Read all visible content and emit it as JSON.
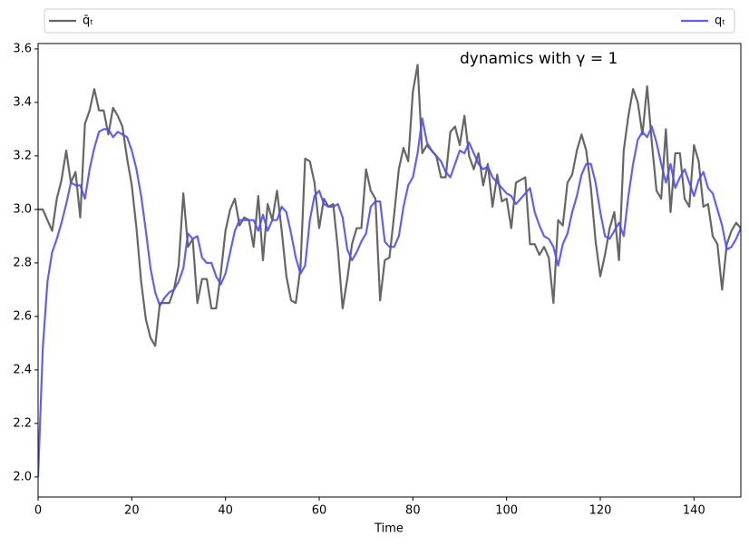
{
  "chart_data": {
    "type": "line",
    "annotation": "dynamics with γ = 1",
    "xlabel": "Time",
    "x": [
      0,
      1,
      2,
      3,
      4,
      5,
      6,
      7,
      8,
      9,
      10,
      11,
      12,
      13,
      14,
      15,
      16,
      17,
      18,
      19,
      20,
      21,
      22,
      23,
      24,
      25,
      26,
      27,
      28,
      29,
      30,
      31,
      32,
      33,
      34,
      35,
      36,
      37,
      38,
      39,
      40,
      41,
      42,
      43,
      44,
      45,
      46,
      47,
      48,
      49,
      50,
      51,
      52,
      53,
      54,
      55,
      56,
      57,
      58,
      59,
      60,
      61,
      62,
      63,
      64,
      65,
      66,
      67,
      68,
      69,
      70,
      71,
      72,
      73,
      74,
      75,
      76,
      77,
      78,
      79,
      80,
      81,
      82,
      83,
      84,
      85,
      86,
      87,
      88,
      89,
      90,
      91,
      92,
      93,
      94,
      95,
      96,
      97,
      98,
      99,
      100,
      101,
      102,
      103,
      104,
      105,
      106,
      107,
      108,
      109,
      110,
      111,
      112,
      113,
      114,
      115,
      116,
      117,
      118,
      119,
      120,
      121,
      122,
      123,
      124,
      125,
      126,
      127,
      128,
      129,
      130,
      131,
      132,
      133,
      134,
      135,
      136,
      137,
      138,
      139,
      140,
      141,
      142,
      143,
      144,
      145,
      146,
      147,
      148,
      149,
      150
    ],
    "series": [
      {
        "name": "q̄ₜ",
        "color": "#555555",
        "values": [
          3.0,
          3.0,
          2.96,
          2.92,
          3.04,
          3.11,
          3.22,
          3.1,
          3.14,
          2.97,
          3.32,
          3.37,
          3.45,
          3.37,
          3.37,
          3.28,
          3.38,
          3.35,
          3.31,
          3.19,
          3.09,
          2.93,
          2.73,
          2.59,
          2.52,
          2.49,
          2.65,
          2.65,
          2.65,
          2.7,
          2.79,
          3.06,
          2.86,
          2.89,
          2.65,
          2.74,
          2.74,
          2.63,
          2.63,
          2.76,
          2.92,
          3.0,
          3.04,
          2.94,
          2.97,
          2.96,
          2.86,
          3.05,
          2.81,
          3.02,
          2.96,
          3.07,
          2.92,
          2.75,
          2.66,
          2.65,
          2.78,
          3.19,
          3.18,
          3.1,
          2.93,
          3.04,
          3.01,
          3.02,
          2.85,
          2.63,
          2.74,
          2.87,
          2.93,
          2.93,
          3.15,
          3.07,
          3.04,
          2.66,
          2.81,
          2.82,
          2.98,
          3.15,
          3.23,
          3.18,
          3.44,
          3.54,
          3.21,
          3.24,
          3.22,
          3.2,
          3.12,
          3.12,
          3.29,
          3.31,
          3.24,
          3.35,
          3.2,
          3.15,
          3.21,
          3.09,
          3.17,
          3.01,
          3.13,
          3.03,
          3.04,
          2.93,
          3.1,
          3.11,
          3.12,
          2.87,
          2.87,
          2.83,
          2.86,
          2.82,
          2.65,
          2.96,
          2.94,
          3.1,
          3.13,
          3.22,
          3.28,
          3.22,
          3.08,
          2.88,
          2.75,
          2.83,
          2.93,
          2.99,
          2.81,
          3.22,
          3.35,
          3.45,
          3.4,
          3.28,
          3.46,
          3.25,
          3.07,
          3.04,
          3.3,
          2.99,
          3.21,
          3.21,
          3.04,
          3.01,
          3.24,
          3.18,
          3.01,
          3.02,
          2.9,
          2.87,
          2.7,
          2.87,
          2.92,
          2.95,
          2.93
        ]
      },
      {
        "name": "qₜ",
        "color": "#5050ee",
        "values": [
          2.0,
          2.48,
          2.73,
          2.84,
          2.89,
          2.95,
          3.02,
          3.1,
          3.09,
          3.09,
          3.04,
          3.15,
          3.23,
          3.29,
          3.3,
          3.3,
          3.27,
          3.29,
          3.28,
          3.27,
          3.22,
          3.15,
          3.05,
          2.92,
          2.78,
          2.69,
          2.64,
          2.67,
          2.69,
          2.7,
          2.73,
          2.78,
          2.91,
          2.89,
          2.9,
          2.82,
          2.8,
          2.8,
          2.75,
          2.72,
          2.76,
          2.84,
          2.92,
          2.96,
          2.96,
          2.96,
          2.96,
          2.92,
          2.98,
          2.92,
          2.96,
          2.96,
          3.01,
          2.99,
          2.91,
          2.82,
          2.76,
          2.79,
          2.96,
          3.05,
          3.07,
          3.02,
          3.01,
          3.01,
          3.02,
          2.97,
          2.85,
          2.81,
          2.84,
          2.88,
          2.91,
          3.01,
          3.03,
          3.03,
          2.88,
          2.86,
          2.86,
          2.9,
          3.01,
          3.09,
          3.12,
          3.21,
          3.34,
          3.25,
          3.22,
          3.2,
          3.18,
          3.14,
          3.12,
          3.17,
          3.22,
          3.21,
          3.25,
          3.21,
          3.17,
          3.15,
          3.16,
          3.12,
          3.1,
          3.08,
          3.06,
          3.05,
          3.02,
          3.04,
          3.06,
          3.08,
          2.99,
          2.94,
          2.9,
          2.89,
          2.86,
          2.79,
          2.87,
          2.91,
          2.99,
          3.05,
          3.13,
          3.17,
          3.17,
          3.1,
          2.99,
          2.9,
          2.89,
          2.92,
          2.95,
          2.9,
          3.05,
          3.17,
          3.26,
          3.29,
          3.27,
          3.31,
          3.25,
          3.17,
          3.1,
          3.17,
          3.08,
          3.12,
          3.15,
          3.1,
          3.05,
          3.11,
          3.14,
          3.08,
          3.06,
          3.0,
          2.94,
          2.85,
          2.86,
          2.89,
          2.93
        ]
      }
    ],
    "xlim": [
      0,
      150
    ],
    "xticks": [
      0,
      20,
      40,
      60,
      80,
      100,
      120,
      140
    ],
    "ylim": [
      1.925,
      3.62
    ],
    "yticks": [
      {
        "value": 2,
        "label": "2.0"
      },
      2.2,
      2.4,
      2.6,
      2.8,
      {
        "value": 3,
        "label": "3.0"
      },
      3.2,
      3.4,
      3.6
    ],
    "legend": "top-expand"
  }
}
